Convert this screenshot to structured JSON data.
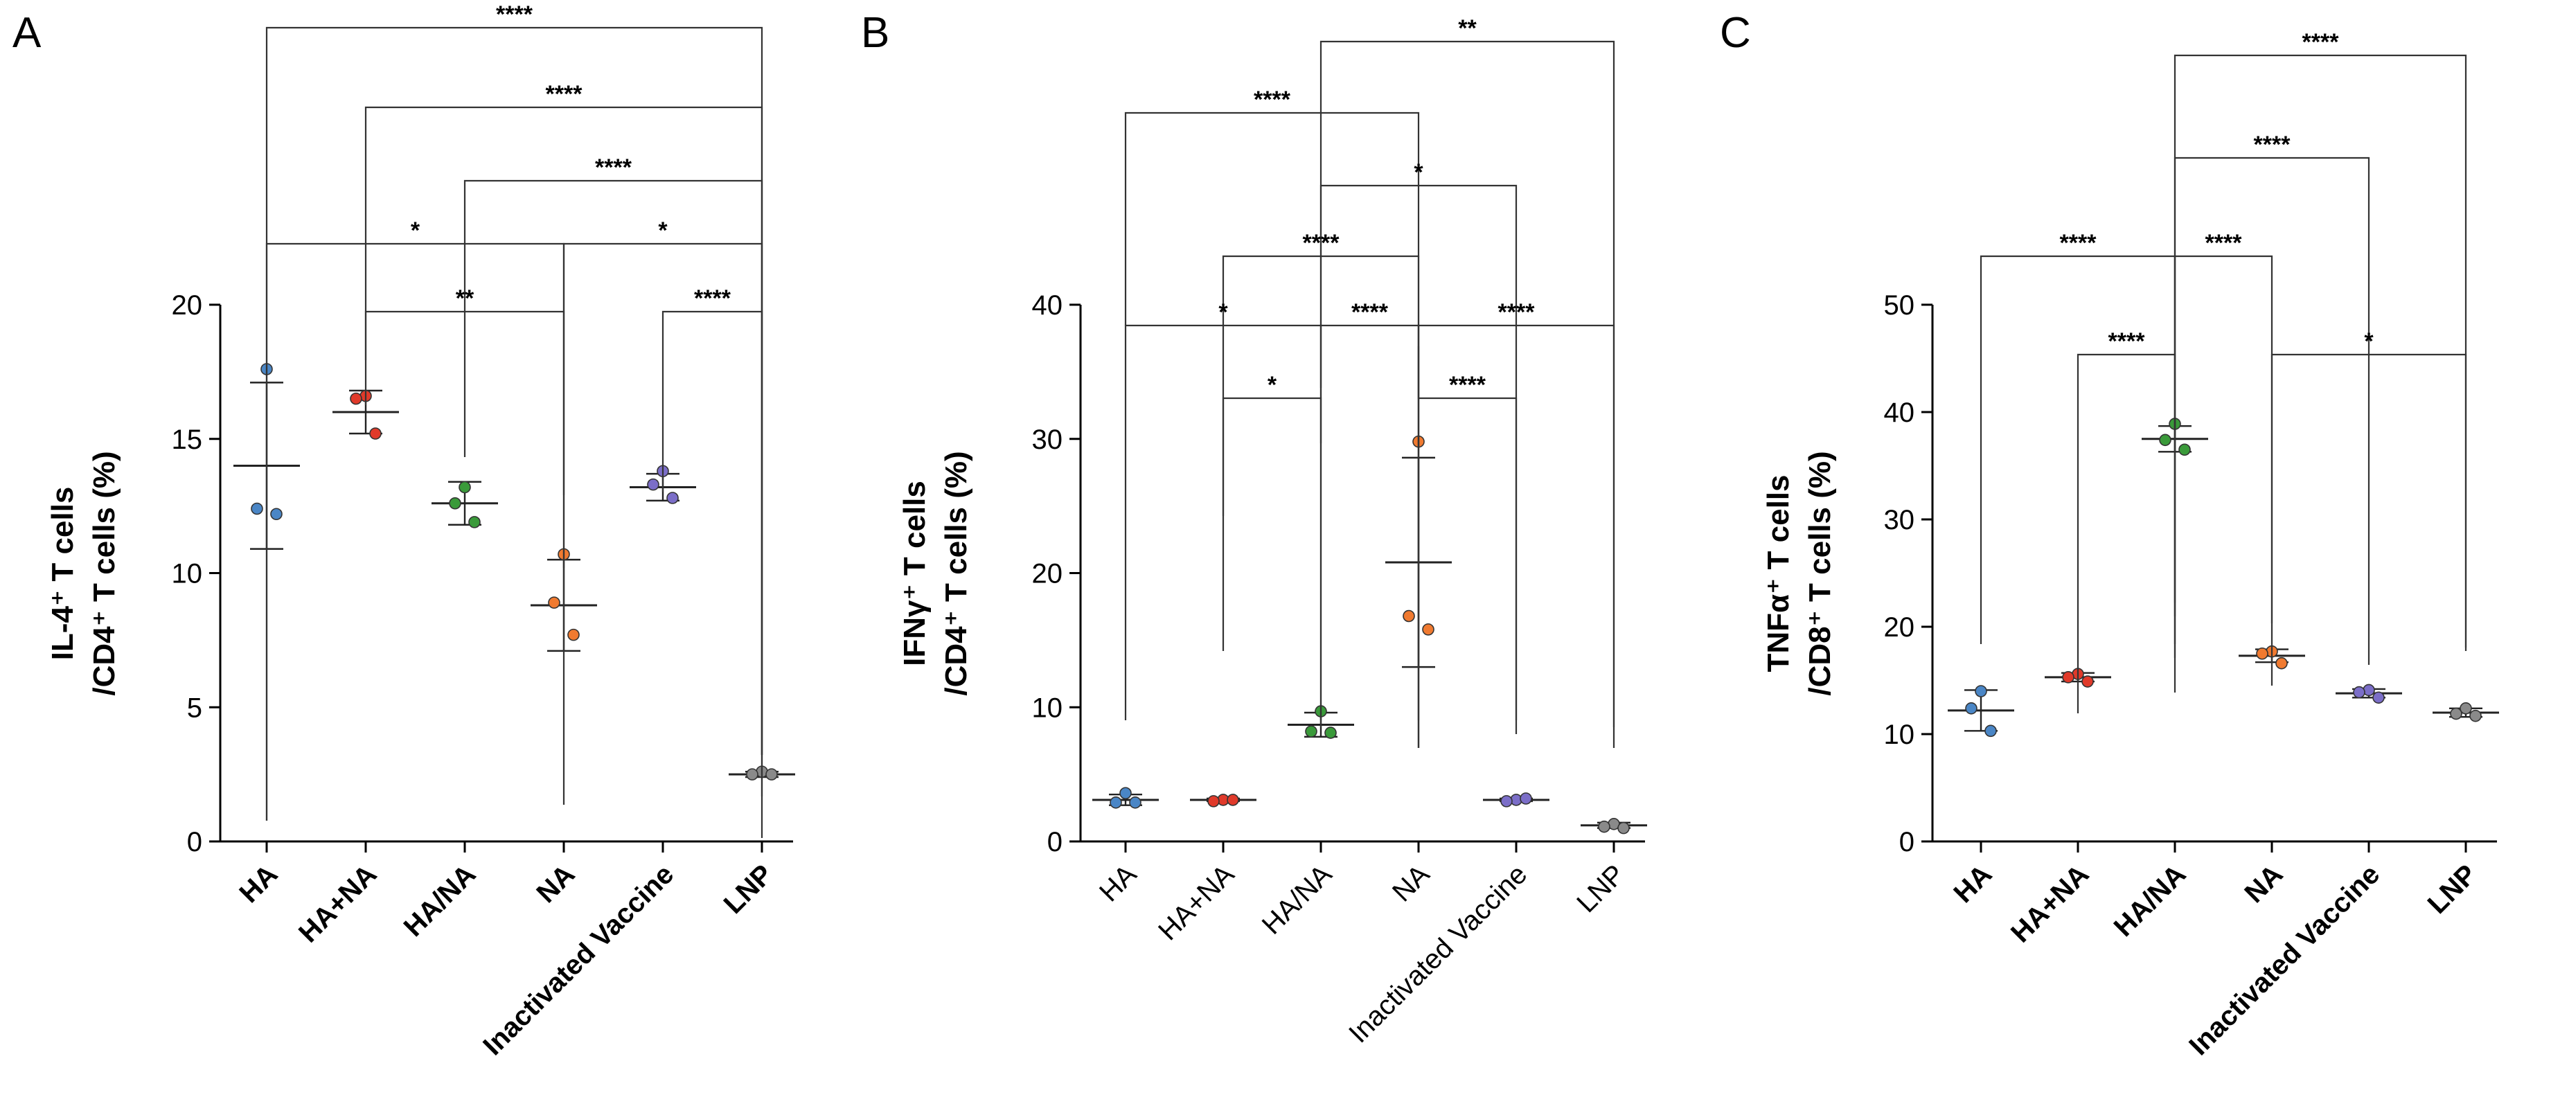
{
  "chart_data": [
    {
      "panel": "A",
      "type": "scatter",
      "ylabel_line1": "IL-4⁺ T cells",
      "ylabel_line2": "/CD4⁺ T cells (%)",
      "ylim": [
        0,
        20
      ],
      "yticks": [
        0,
        5,
        10,
        15,
        20
      ],
      "categories": [
        "HA",
        "HA+NA",
        "HA/NA",
        "NA",
        "Inactivated Vaccine",
        "LNP"
      ],
      "groups": [
        {
          "name": "HA",
          "color": "#4a86c6",
          "points": [
            17.6,
            12.4,
            12.2
          ],
          "mean": 14.0,
          "sd": 3.1
        },
        {
          "name": "HA+NA",
          "color": "#e03a2a",
          "points": [
            16.6,
            16.5,
            15.2
          ],
          "mean": 16.0,
          "sd": 0.8
        },
        {
          "name": "HA/NA",
          "color": "#3a9a3a",
          "points": [
            13.2,
            12.6,
            11.9
          ],
          "mean": 12.6,
          "sd": 0.8
        },
        {
          "name": "NA",
          "color": "#f07a30",
          "points": [
            10.7,
            8.9,
            7.7
          ],
          "mean": 8.8,
          "sd": 1.7
        },
        {
          "name": "Inactivated Vaccine",
          "color": "#7b6ec8",
          "points": [
            13.8,
            13.3,
            12.8
          ],
          "mean": 13.2,
          "sd": 0.5
        },
        {
          "name": "LNP",
          "color": "#8a8a8a",
          "points": [
            2.6,
            2.5,
            2.5
          ],
          "mean": 2.5,
          "sd": 0.1
        }
      ],
      "comparisons": [
        {
          "from": 0,
          "to": 5,
          "label": "****"
        },
        {
          "from": 1,
          "to": 5,
          "label": "****"
        },
        {
          "from": 2,
          "to": 5,
          "label": "****"
        },
        {
          "from": 0,
          "to": 3,
          "label": "*"
        },
        {
          "from": 3,
          "to": 5,
          "label": "*"
        },
        {
          "from": 1,
          "to": 3,
          "label": "**"
        },
        {
          "from": 4,
          "to": 5,
          "label": "****"
        }
      ]
    },
    {
      "panel": "B",
      "type": "scatter",
      "ylabel_line1": "IFNγ⁺ T cells",
      "ylabel_line2": "/CD4⁺ T cells (%)",
      "ylim": [
        0,
        40
      ],
      "yticks": [
        0,
        10,
        20,
        30,
        40
      ],
      "categories": [
        "HA",
        "HA+NA",
        "HA/NA",
        "NA",
        "Inactivated Vaccine",
        "LNP"
      ],
      "groups": [
        {
          "name": "HA",
          "color": "#4a86c6",
          "points": [
            3.6,
            2.9,
            2.9
          ],
          "mean": 3.1,
          "sd": 0.4
        },
        {
          "name": "HA+NA",
          "color": "#e03a2a",
          "points": [
            3.1,
            3.0,
            3.1
          ],
          "mean": 3.1,
          "sd": 0.1
        },
        {
          "name": "HA/NA",
          "color": "#3a9a3a",
          "points": [
            9.7,
            8.2,
            8.1
          ],
          "mean": 8.7,
          "sd": 0.9
        },
        {
          "name": "NA",
          "color": "#f07a30",
          "points": [
            29.8,
            16.8,
            15.8
          ],
          "mean": 20.8,
          "sd": 7.8
        },
        {
          "name": "Inactivated Vaccine",
          "color": "#7b6ec8",
          "points": [
            3.1,
            3.0,
            3.2
          ],
          "mean": 3.1,
          "sd": 0.1
        },
        {
          "name": "LNP",
          "color": "#8a8a8a",
          "points": [
            1.3,
            1.1,
            1.0
          ],
          "mean": 1.2,
          "sd": 0.2
        }
      ],
      "comparisons": [
        {
          "from": 2,
          "to": 5,
          "label": "**"
        },
        {
          "from": 0,
          "to": 3,
          "label": "****"
        },
        {
          "from": 2,
          "to": 4,
          "label": "*"
        },
        {
          "from": 1,
          "to": 3,
          "label": "****"
        },
        {
          "from": 0,
          "to": 2,
          "label": "*"
        },
        {
          "from": 2,
          "to": 3,
          "label": "****"
        },
        {
          "from": 3,
          "to": 5,
          "label": "****"
        },
        {
          "from": 1,
          "to": 2,
          "label": "*"
        },
        {
          "from": 3,
          "to": 4,
          "label": "****"
        }
      ]
    },
    {
      "panel": "C",
      "type": "scatter",
      "ylabel_line1": "TNFα⁺ T cells",
      "ylabel_line2": "/CD8⁺ T cells (%)",
      "ylim": [
        0,
        50
      ],
      "yticks": [
        0,
        10,
        20,
        30,
        40,
        50
      ],
      "categories": [
        "HA",
        "HA+NA",
        "HA/NA",
        "NA",
        "Inactivated Vaccine",
        "LNP"
      ],
      "groups": [
        {
          "name": "HA",
          "color": "#4a86c6",
          "points": [
            14.0,
            12.4,
            10.3
          ],
          "mean": 12.2,
          "sd": 1.9
        },
        {
          "name": "HA+NA",
          "color": "#e03a2a",
          "points": [
            15.6,
            15.3,
            14.9
          ],
          "mean": 15.3,
          "sd": 0.4
        },
        {
          "name": "HA/NA",
          "color": "#3a9a3a",
          "points": [
            38.9,
            37.4,
            36.5
          ],
          "mean": 37.5,
          "sd": 1.2
        },
        {
          "name": "NA",
          "color": "#f07a30",
          "points": [
            17.7,
            17.5,
            16.6
          ],
          "mean": 17.3,
          "sd": 0.6
        },
        {
          "name": "Inactivated Vaccine",
          "color": "#7b6ec8",
          "points": [
            14.1,
            13.9,
            13.4
          ],
          "mean": 13.8,
          "sd": 0.4
        },
        {
          "name": "LNP",
          "color": "#8a8a8a",
          "points": [
            12.4,
            11.9,
            11.7
          ],
          "mean": 12.0,
          "sd": 0.4
        }
      ],
      "comparisons": [
        {
          "from": 2,
          "to": 5,
          "label": "****"
        },
        {
          "from": 2,
          "to": 4,
          "label": "****"
        },
        {
          "from": 0,
          "to": 2,
          "label": "****"
        },
        {
          "from": 2,
          "to": 3,
          "label": "****"
        },
        {
          "from": 1,
          "to": 2,
          "label": "****"
        },
        {
          "from": 3,
          "to": 5,
          "label": "*"
        }
      ]
    }
  ]
}
